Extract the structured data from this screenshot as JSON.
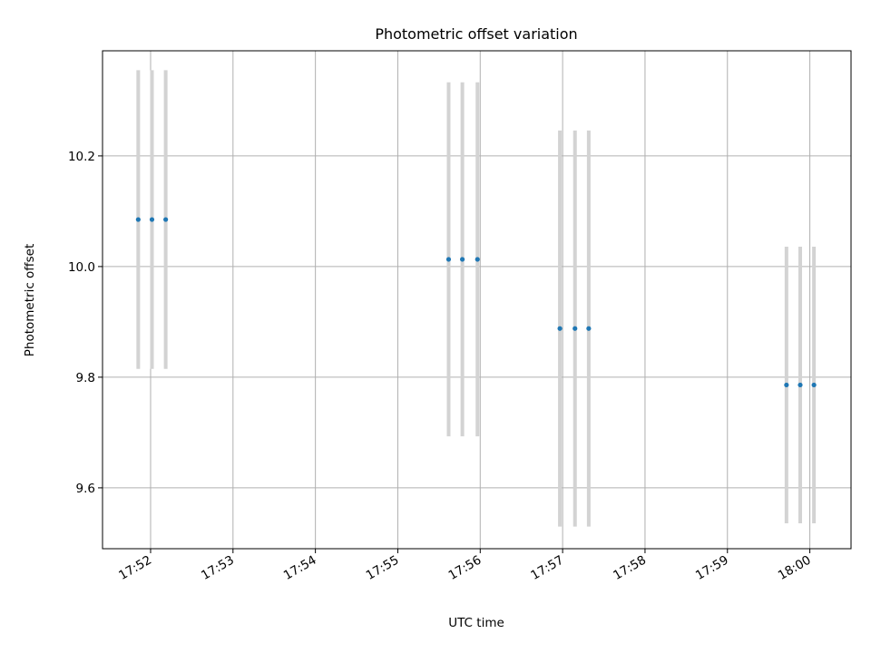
{
  "chart_data": {
    "type": "scatter",
    "title": "Photometric offset variation",
    "xlabel": "UTC time",
    "ylabel": "Photometric offset",
    "x_axis_kind": "time",
    "xlim": [
      "17:51:25",
      "18:00:30"
    ],
    "ylim": [
      9.49,
      10.39
    ],
    "x_ticks": [
      "17:52",
      "17:53",
      "17:54",
      "17:55",
      "17:56",
      "17:57",
      "17:58",
      "17:59",
      "18:00"
    ],
    "y_ticks": [
      9.6,
      9.8,
      10.0,
      10.2
    ],
    "grid": true,
    "marker_color": "#1f77b4",
    "errorbar_color": "#d3d3d3",
    "points": [
      {
        "x": "17:51:51",
        "y": 10.085,
        "err": 0.27
      },
      {
        "x": "17:52:01",
        "y": 10.085,
        "err": 0.27
      },
      {
        "x": "17:52:11",
        "y": 10.085,
        "err": 0.27
      },
      {
        "x": "17:55:37",
        "y": 10.013,
        "err": 0.32
      },
      {
        "x": "17:55:47",
        "y": 10.013,
        "err": 0.32
      },
      {
        "x": "17:55:58",
        "y": 10.013,
        "err": 0.32
      },
      {
        "x": "17:56:58",
        "y": 9.888,
        "err": 0.358
      },
      {
        "x": "17:57:09",
        "y": 9.888,
        "err": 0.358
      },
      {
        "x": "17:57:19",
        "y": 9.888,
        "err": 0.358
      },
      {
        "x": "17:59:43",
        "y": 9.786,
        "err": 0.25
      },
      {
        "x": "17:59:53",
        "y": 9.786,
        "err": 0.25
      },
      {
        "x": "18:00:03",
        "y": 9.786,
        "err": 0.25
      }
    ]
  }
}
